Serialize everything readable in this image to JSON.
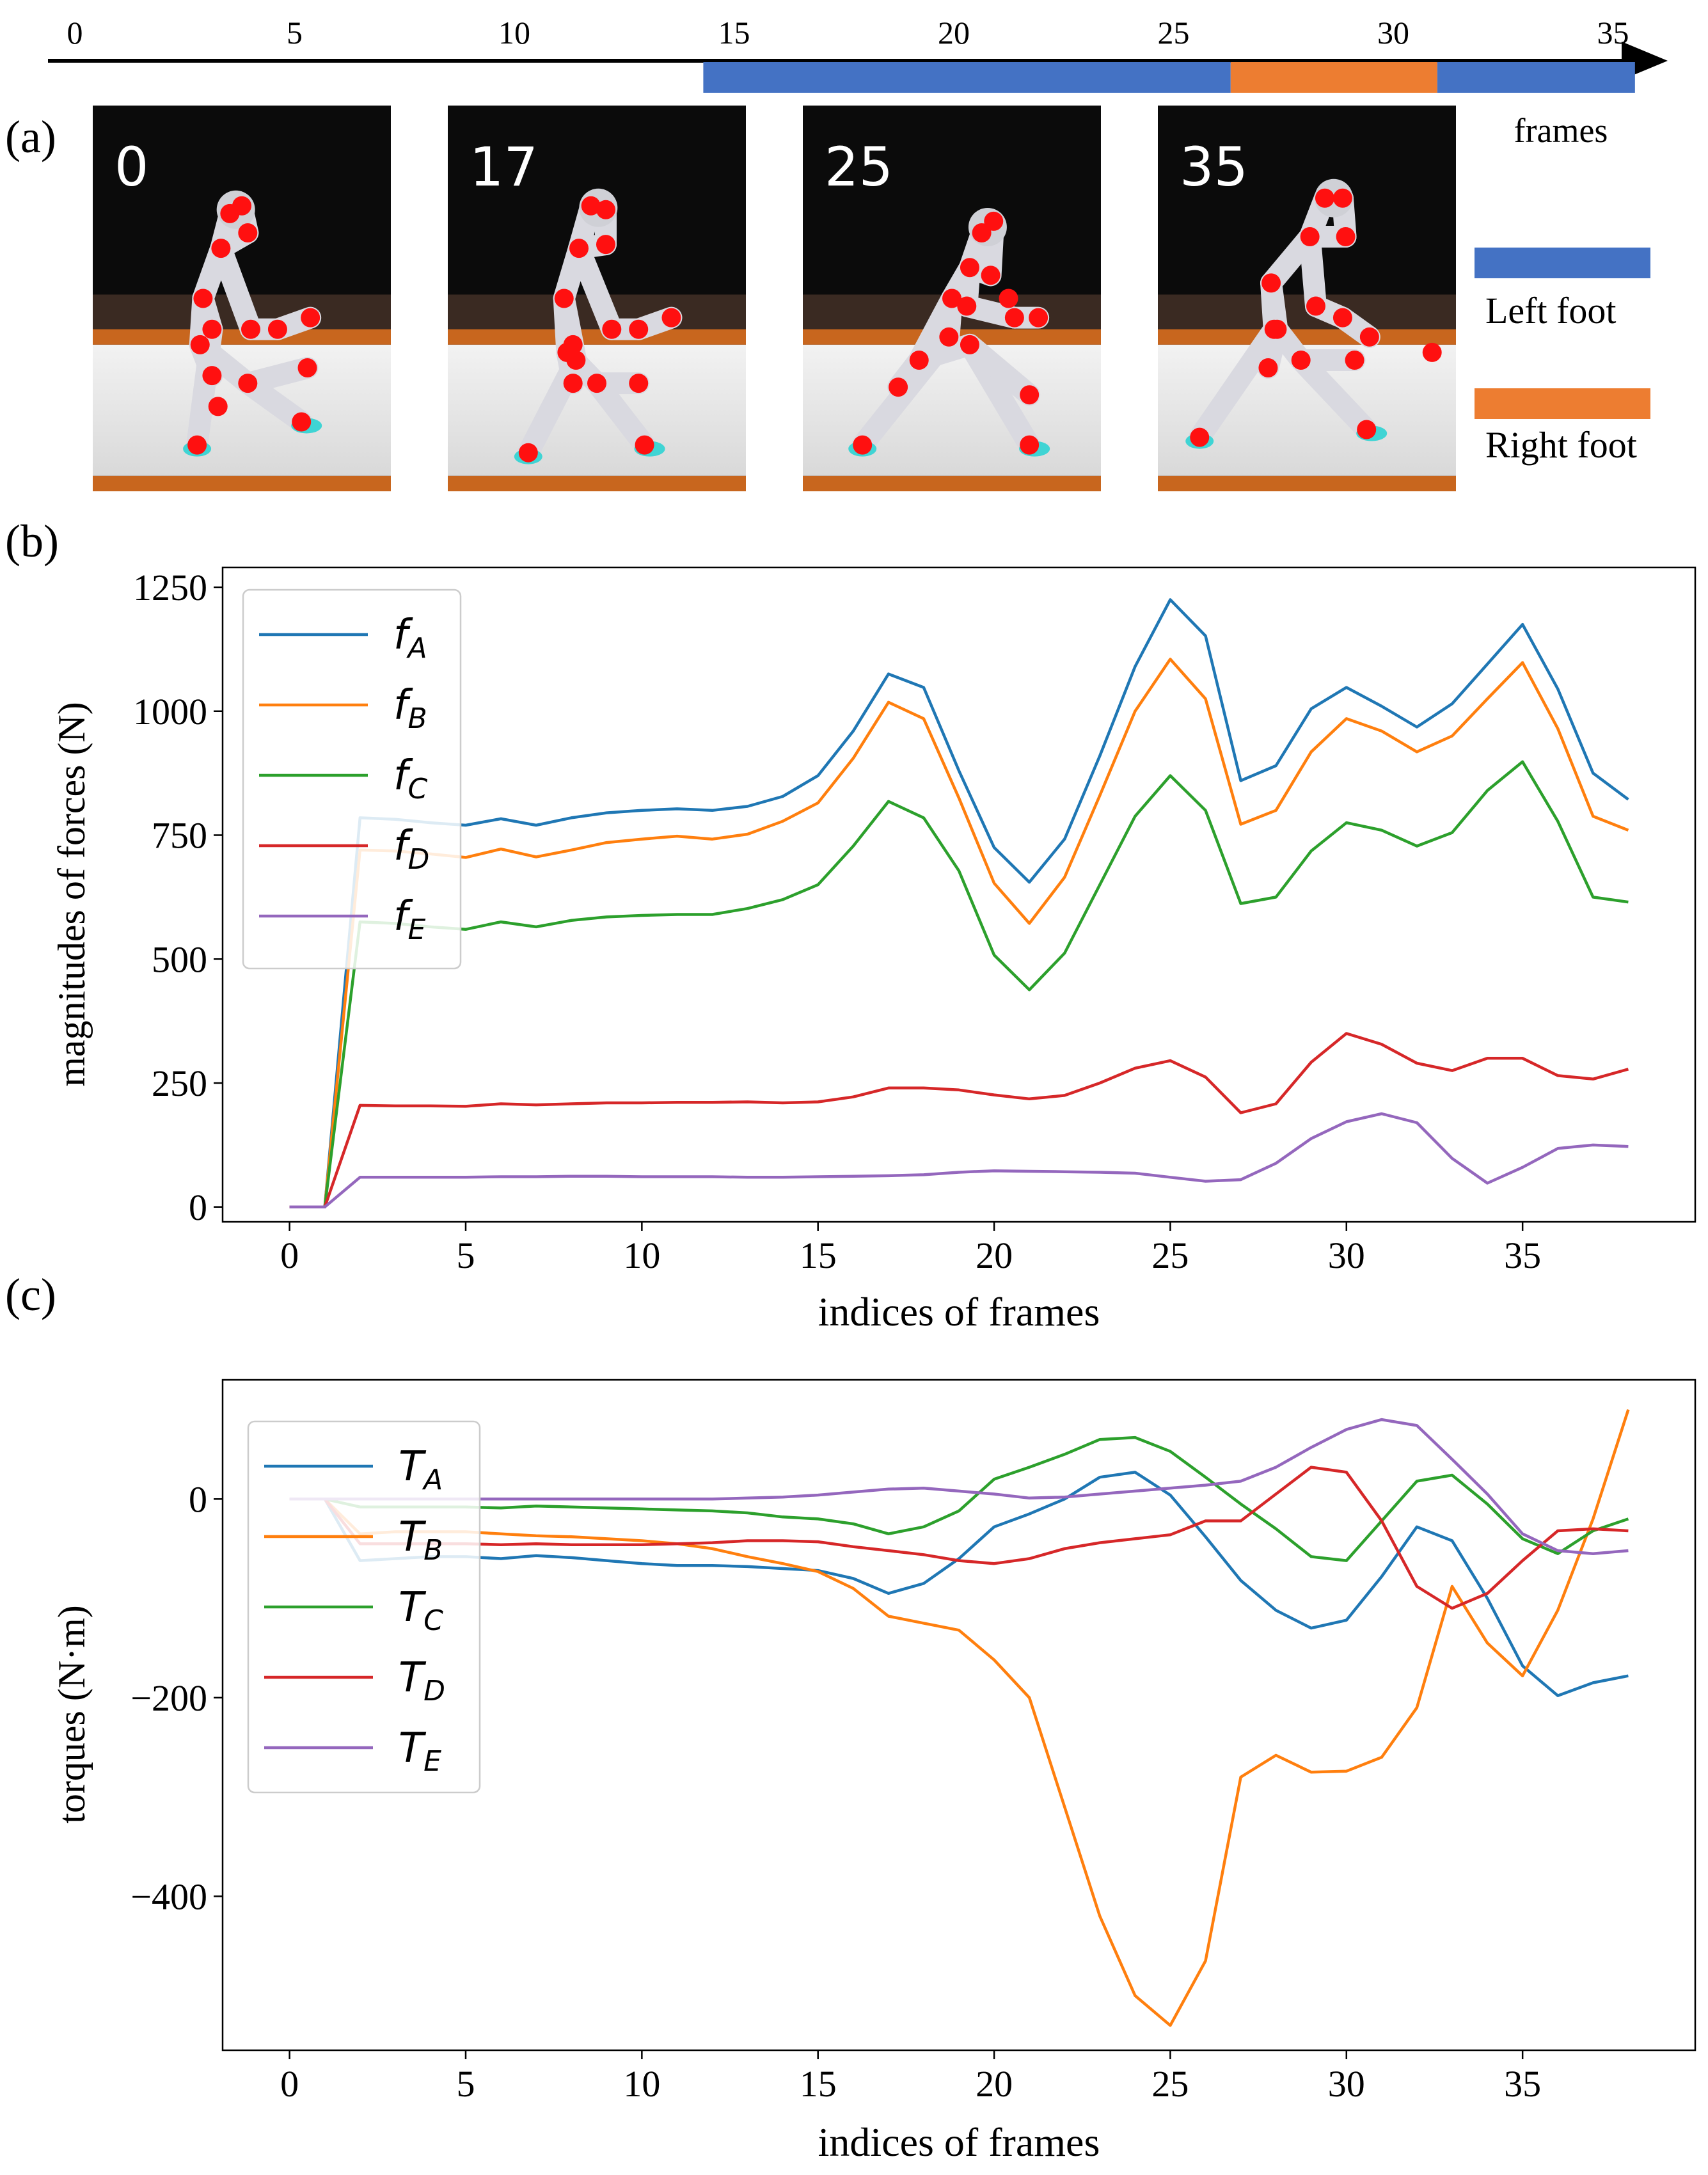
{
  "panels": {
    "a": "(a)",
    "b": "(b)",
    "c": "(c)"
  },
  "timeline": {
    "ticks": [
      "0",
      "5",
      "10",
      "15",
      "20",
      "25",
      "30",
      "35"
    ],
    "label": "frames",
    "left_foot_label": "Left foot",
    "right_foot_label": "Right foot",
    "left_foot_frames": [
      [
        14.3,
        26.3
      ],
      [
        31.0,
        35.5
      ]
    ],
    "right_foot_frames": [
      [
        26.3,
        31.0
      ]
    ],
    "colors": {
      "left_foot": "#4472C4",
      "right_foot": "#ED7D31"
    }
  },
  "thumbnails": [
    {
      "frame_label": "0"
    },
    {
      "frame_label": "17"
    },
    {
      "frame_label": "25"
    },
    {
      "frame_label": "35"
    }
  ],
  "chart_data": [
    {
      "type": "line",
      "panel": "b",
      "xlabel": "indices of frames",
      "ylabel": "magnitudes of forces (N)",
      "xlim": [
        -1.9,
        39.9
      ],
      "ylim": [
        -30,
        1290
      ],
      "xticks": [
        0,
        5,
        10,
        15,
        20,
        25,
        30,
        35
      ],
      "yticks": [
        0,
        250,
        500,
        750,
        1000,
        1250
      ],
      "legend_position": "upper-left",
      "x": [
        0,
        1,
        2,
        3,
        4,
        5,
        6,
        7,
        8,
        9,
        10,
        11,
        12,
        13,
        14,
        15,
        16,
        17,
        18,
        19,
        20,
        21,
        22,
        23,
        24,
        25,
        26,
        27,
        28,
        29,
        30,
        31,
        32,
        33,
        34,
        35,
        36,
        37,
        38
      ],
      "series": [
        {
          "name": "f",
          "sub": "A",
          "color": "#1f77b4",
          "values": [
            0,
            0,
            785,
            782,
            775,
            770,
            783,
            770,
            785,
            795,
            800,
            803,
            800,
            808,
            828,
            870,
            960,
            1075,
            1048,
            880,
            725,
            655,
            742,
            910,
            1090,
            1225,
            1152,
            860,
            890,
            1005,
            1048,
            1010,
            968,
            1015,
            1095,
            1175,
            1045,
            875,
            822
          ]
        },
        {
          "name": "f",
          "sub": "B",
          "color": "#ff7f0e",
          "values": [
            0,
            0,
            720,
            718,
            712,
            705,
            722,
            706,
            720,
            735,
            742,
            748,
            742,
            752,
            778,
            815,
            905,
            1018,
            985,
            825,
            653,
            572,
            665,
            830,
            1000,
            1105,
            1025,
            772,
            800,
            918,
            985,
            960,
            918,
            950,
            1025,
            1098,
            965,
            788,
            760
          ]
        },
        {
          "name": "f",
          "sub": "C",
          "color": "#2ca02c",
          "values": [
            0,
            0,
            575,
            572,
            565,
            560,
            575,
            565,
            578,
            585,
            588,
            590,
            590,
            602,
            620,
            650,
            728,
            818,
            785,
            678,
            508,
            438,
            512,
            650,
            788,
            870,
            800,
            612,
            625,
            718,
            775,
            760,
            728,
            755,
            840,
            898,
            778,
            625,
            615
          ]
        },
        {
          "name": "f",
          "sub": "D",
          "color": "#d62728",
          "values": [
            0,
            0,
            205,
            204,
            204,
            203,
            208,
            206,
            208,
            210,
            210,
            211,
            211,
            212,
            210,
            212,
            222,
            240,
            240,
            236,
            226,
            218,
            225,
            250,
            280,
            295,
            262,
            190,
            208,
            292,
            350,
            328,
            290,
            275,
            300,
            300,
            265,
            258,
            278
          ]
        },
        {
          "name": "f",
          "sub": "E",
          "color": "#9467bd",
          "values": [
            0,
            0,
            60,
            60,
            60,
            60,
            61,
            61,
            62,
            62,
            61,
            61,
            61,
            60,
            60,
            61,
            62,
            63,
            65,
            70,
            73,
            72,
            71,
            70,
            68,
            60,
            52,
            55,
            88,
            138,
            172,
            188,
            170,
            98,
            48,
            80,
            118,
            125,
            122
          ]
        }
      ]
    },
    {
      "type": "line",
      "panel": "c",
      "xlabel": "indices of frames",
      "ylabel": "torques (N·m)",
      "xlim": [
        -1.9,
        39.9
      ],
      "ylim": [
        -555,
        120
      ],
      "xticks": [
        0,
        5,
        10,
        15,
        20,
        25,
        30,
        35
      ],
      "yticks": [
        -400,
        -200,
        0
      ],
      "ytick_labels": [
        "−400",
        "−200",
        "0"
      ],
      "legend_position": "upper-left",
      "x": [
        0,
        1,
        2,
        3,
        4,
        5,
        6,
        7,
        8,
        9,
        10,
        11,
        12,
        13,
        14,
        15,
        16,
        17,
        18,
        19,
        20,
        21,
        22,
        23,
        24,
        25,
        26,
        27,
        28,
        29,
        30,
        31,
        32,
        33,
        34,
        35,
        36,
        37,
        38
      ],
      "series": [
        {
          "name": "T",
          "sub": "A",
          "color": "#1f77b4",
          "values": [
            0,
            0,
            -62,
            -60,
            -58,
            -58,
            -60,
            -57,
            -59,
            -62,
            -65,
            -67,
            -67,
            -68,
            -70,
            -72,
            -80,
            -95,
            -85,
            -60,
            -28,
            -15,
            0,
            22,
            27,
            4,
            -38,
            -82,
            -112,
            -130,
            -122,
            -78,
            -28,
            -42,
            -100,
            -168,
            -198,
            -185,
            -178
          ]
        },
        {
          "name": "T",
          "sub": "B",
          "color": "#ff7f0e",
          "values": [
            0,
            0,
            -35,
            -33,
            -33,
            -33,
            -35,
            -37,
            -38,
            -40,
            -42,
            -45,
            -50,
            -58,
            -65,
            -73,
            -90,
            -118,
            -125,
            -132,
            -162,
            -200,
            -310,
            -420,
            -500,
            -530,
            -465,
            -280,
            -258,
            -275,
            -274,
            -260,
            -210,
            -88,
            -145,
            -178,
            -112,
            -20,
            90
          ]
        },
        {
          "name": "T",
          "sub": "C",
          "color": "#2ca02c",
          "values": [
            0,
            0,
            -8,
            -8,
            -8,
            -8,
            -9,
            -7,
            -8,
            -9,
            -10,
            -11,
            -12,
            -14,
            -18,
            -20,
            -25,
            -35,
            -28,
            -12,
            20,
            32,
            45,
            60,
            62,
            48,
            22,
            -5,
            -30,
            -58,
            -62,
            -22,
            18,
            24,
            -5,
            -40,
            -55,
            -32,
            -20
          ]
        },
        {
          "name": "T",
          "sub": "D",
          "color": "#d62728",
          "values": [
            0,
            0,
            -45,
            -45,
            -45,
            -45,
            -46,
            -45,
            -46,
            -46,
            -46,
            -45,
            -44,
            -42,
            -42,
            -43,
            -48,
            -52,
            -56,
            -62,
            -65,
            -60,
            -50,
            -44,
            -40,
            -36,
            -22,
            -22,
            5,
            32,
            27,
            -22,
            -88,
            -110,
            -95,
            -62,
            -32,
            -30,
            -32
          ]
        },
        {
          "name": "T",
          "sub": "E",
          "color": "#9467bd",
          "values": [
            0,
            0,
            0,
            0,
            0,
            0,
            0,
            0,
            0,
            0,
            0,
            0,
            0,
            1,
            2,
            4,
            7,
            10,
            11,
            8,
            5,
            1,
            2,
            5,
            8,
            11,
            14,
            18,
            32,
            52,
            70,
            80,
            74,
            40,
            5,
            -35,
            -52,
            -55,
            -52
          ]
        }
      ]
    }
  ]
}
